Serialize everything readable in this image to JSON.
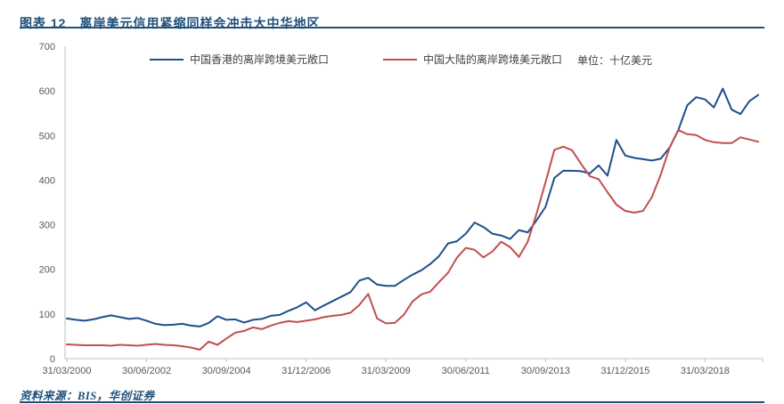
{
  "header": {
    "title": "图表 12　离岸美元信用紧缩同样会冲击大中华地区"
  },
  "legend": {
    "series1": "中国香港的离岸跨境美元敞口",
    "series2": "中国大陆的离岸跨境美元敞口",
    "unit_label": "单位：十亿美元"
  },
  "footer": {
    "source": "资料来源：BIS，华创证券"
  },
  "colors": {
    "hk_line": "#1F4E8C",
    "cn_line": "#C0504D",
    "title_blue": "#1F4E79",
    "axis_gray": "#BFBFBF",
    "tick_text_gray": "#595959",
    "legend_text": "#404040"
  },
  "chart_data": {
    "type": "line",
    "title": "",
    "unit": "十亿美元",
    "x_freq": "quarterly",
    "x_start": "2000-Q1",
    "x_end": "2019-Q3",
    "n_points": 79,
    "x_tick_labels": [
      "31/03/2000",
      "30/06/2002",
      "30/09/2004",
      "31/12/2006",
      "31/03/2009",
      "30/06/2011",
      "30/09/2013",
      "31/12/2015",
      "31/03/2018"
    ],
    "x_tick_indices": [
      0,
      9,
      18,
      27,
      36,
      45,
      54,
      63,
      72
    ],
    "ylim": [
      0,
      700
    ],
    "y_ticks": [
      0,
      100,
      200,
      300,
      400,
      500,
      600,
      700
    ],
    "grid": false,
    "legend_position": "top",
    "series": [
      {
        "name": "中国香港的离岸跨境美元敞口",
        "color": "#1F4E8C",
        "values": [
          90,
          87,
          85,
          88,
          93,
          97,
          93,
          89,
          91,
          85,
          78,
          75,
          76,
          78,
          74,
          72,
          80,
          95,
          87,
          88,
          81,
          87,
          89,
          96,
          98,
          107,
          115,
          126,
          108,
          119,
          129,
          139,
          149,
          175,
          181,
          166,
          163,
          163,
          176,
          188,
          198,
          212,
          230,
          258,
          263,
          280,
          305,
          295,
          280,
          276,
          268,
          288,
          283,
          310,
          340,
          405,
          421,
          421,
          420,
          415,
          433,
          410,
          490,
          455,
          450,
          447,
          444,
          448,
          473,
          513,
          568,
          586,
          581,
          563,
          605,
          558,
          548,
          577,
          591
        ]
      },
      {
        "name": "中国大陆的离岸跨境美元敞口",
        "color": "#C0504D",
        "values": [
          32,
          31,
          30,
          30,
          30,
          29,
          31,
          30,
          29,
          31,
          33,
          31,
          30,
          28,
          25,
          20,
          38,
          31,
          45,
          58,
          62,
          70,
          66,
          74,
          80,
          84,
          82,
          85,
          88,
          93,
          96,
          98,
          103,
          120,
          145,
          90,
          79,
          80,
          98,
          128,
          144,
          150,
          172,
          192,
          226,
          248,
          244,
          227,
          240,
          262,
          250,
          228,
          262,
          325,
          395,
          468,
          475,
          467,
          437,
          409,
          402,
          373,
          345,
          331,
          327,
          331,
          362,
          412,
          473,
          512,
          503,
          501,
          490,
          485,
          483,
          483,
          496,
          491,
          486
        ]
      }
    ]
  }
}
